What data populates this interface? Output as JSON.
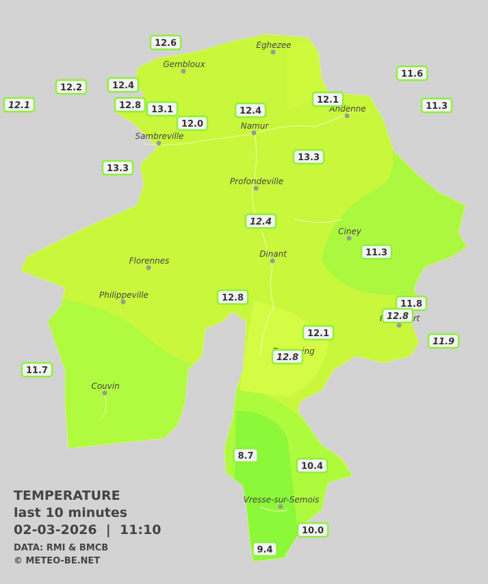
{
  "map": {
    "legend": {
      "title": "TEMPERATURE",
      "subtitle": "last 10 minutes",
      "datetime": "02-03-2026  |  11:10",
      "source": "DATA: RMI & BMCB",
      "copyright": "© METEO-BE.NET"
    },
    "towns": [
      "Eghezee",
      "Gembloux",
      "Andenne",
      "Namur",
      "Sambreville",
      "Profondeville",
      "Ciney",
      "Dinant",
      "Florennes",
      "Philippeville",
      "Rochefort",
      "Beauraing",
      "Couvin",
      "Vresse-sur-Semois"
    ],
    "stations": [
      {
        "label": "12.6"
      },
      {
        "label": "12.2"
      },
      {
        "label": "12.1",
        "italic": true
      },
      {
        "label": "12.4"
      },
      {
        "label": "12.8"
      },
      {
        "label": "13.1"
      },
      {
        "label": "12.0"
      },
      {
        "label": "12.4"
      },
      {
        "label": "12.1"
      },
      {
        "label": "11.6"
      },
      {
        "label": "11.3"
      },
      {
        "label": "13.3"
      },
      {
        "label": "13.3"
      },
      {
        "label": "12.4",
        "italic": true
      },
      {
        "label": "11.3"
      },
      {
        "label": "12.8"
      },
      {
        "label": "11.8"
      },
      {
        "label": "12.8",
        "italic": true
      },
      {
        "label": "12.1"
      },
      {
        "label": "11.9",
        "italic": true
      },
      {
        "label": "12.8",
        "italic": true
      },
      {
        "label": "11.7"
      },
      {
        "label": "8.7"
      },
      {
        "label": "10.4"
      },
      {
        "label": "10.0"
      },
      {
        "label": "9.4"
      }
    ]
  }
}
